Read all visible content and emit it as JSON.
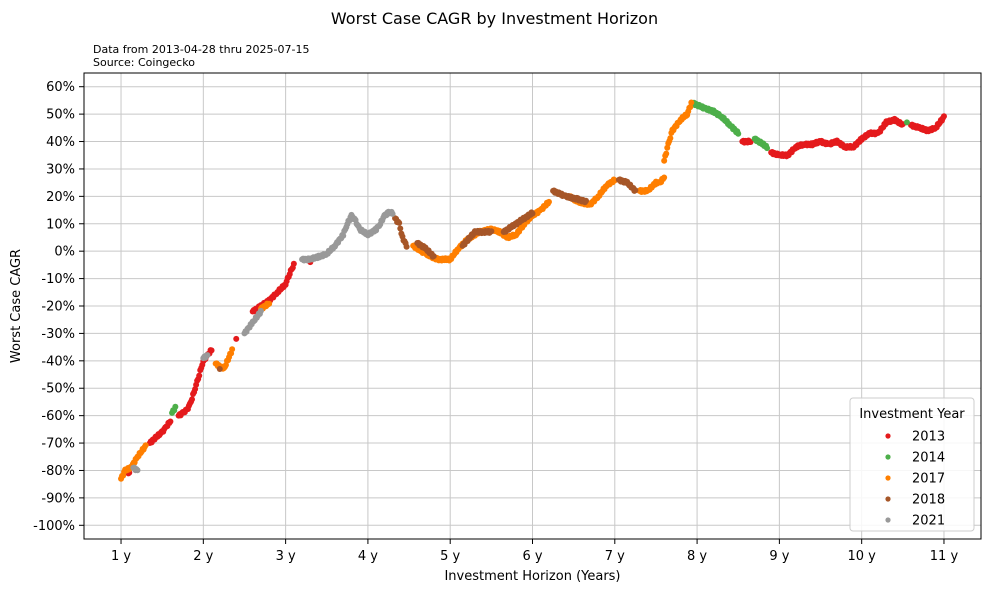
{
  "chart_data": {
    "type": "scatter",
    "title": "Worst Case CAGR by Investment Horizon",
    "subtitle_lines": [
      "Data from 2013-04-28 thru 2025-07-15",
      "Source: Coingecko"
    ],
    "xlabel": "Investment Horizon (Years)",
    "ylabel": "Worst Case CAGR",
    "xlim": [
      0.55,
      11.45
    ],
    "ylim": [
      -105,
      65
    ],
    "x_ticks": [
      1,
      2,
      3,
      4,
      5,
      6,
      7,
      8,
      9,
      10,
      11
    ],
    "x_tick_labels": [
      "1 y",
      "2 y",
      "3 y",
      "4 y",
      "5 y",
      "6 y",
      "7 y",
      "8 y",
      "9 y",
      "10 y",
      "11 y"
    ],
    "y_ticks": [
      -100,
      -90,
      -80,
      -70,
      -60,
      -50,
      -40,
      -30,
      -20,
      -10,
      0,
      10,
      20,
      30,
      40,
      50,
      60
    ],
    "y_tick_labels": [
      "-100%",
      "-90%",
      "-80%",
      "-70%",
      "-60%",
      "-50%",
      "-40%",
      "-30%",
      "-20%",
      "-10%",
      "0%",
      "10%",
      "20%",
      "30%",
      "40%",
      "50%",
      "60%"
    ],
    "grid": true,
    "legend": {
      "title": "Investment Year",
      "placement": "bottom-right"
    },
    "series": [
      {
        "name": "2013",
        "color": "#e41a1c",
        "segments": [
          [
            [
              1.07,
              -80
            ],
            [
              1.1,
              -81
            ]
          ],
          [
            [
              1.35,
              -70
            ],
            [
              1.42,
              -68
            ],
            [
              1.5,
              -66
            ],
            [
              1.55,
              -64
            ],
            [
              1.6,
              -62
            ]
          ],
          [
            [
              1.7,
              -60
            ],
            [
              1.75,
              -59
            ],
            [
              1.8,
              -58
            ],
            [
              1.85,
              -55
            ],
            [
              1.9,
              -50
            ],
            [
              1.95,
              -45
            ],
            [
              2.0,
              -40
            ],
            [
              2.05,
              -38
            ],
            [
              2.1,
              -36
            ]
          ],
          [
            [
              2.4,
              -32
            ]
          ],
          [
            [
              2.6,
              -22
            ],
            [
              2.7,
              -20
            ],
            [
              2.8,
              -18
            ],
            [
              2.9,
              -15
            ],
            [
              3.0,
              -12
            ],
            [
              3.05,
              -8
            ],
            [
              3.1,
              -5
            ]
          ],
          [
            [
              3.3,
              -4
            ]
          ],
          [
            [
              8.55,
              40
            ],
            [
              8.65,
              40
            ]
          ],
          [
            [
              8.9,
              36
            ],
            [
              9.0,
              35
            ],
            [
              9.1,
              35
            ],
            [
              9.2,
              38
            ],
            [
              9.3,
              39
            ],
            [
              9.4,
              39
            ],
            [
              9.5,
              40
            ],
            [
              9.6,
              39
            ],
            [
              9.7,
              40
            ],
            [
              9.8,
              38
            ],
            [
              9.9,
              38
            ],
            [
              10.0,
              41
            ],
            [
              10.1,
              43
            ],
            [
              10.2,
              43
            ],
            [
              10.3,
              47
            ],
            [
              10.4,
              48
            ],
            [
              10.5,
              46
            ]
          ],
          [
            [
              10.6,
              46
            ],
            [
              10.7,
              45
            ],
            [
              10.8,
              44
            ],
            [
              10.9,
              45
            ],
            [
              11.0,
              49
            ]
          ]
        ]
      },
      {
        "name": "2014",
        "color": "#4daf4a",
        "segments": [
          [
            [
              1.62,
              -59
            ],
            [
              1.66,
              -57
            ]
          ],
          [
            [
              7.95,
              54
            ],
            [
              8.1,
              52
            ],
            [
              8.2,
              51
            ],
            [
              8.3,
              49
            ],
            [
              8.4,
              46
            ],
            [
              8.5,
              43
            ]
          ],
          [
            [
              8.7,
              41
            ],
            [
              8.85,
              38
            ]
          ],
          [
            [
              10.55,
              47
            ]
          ]
        ]
      },
      {
        "name": "2017",
        "color": "#ff7f00",
        "segments": [
          [
            [
              1.0,
              -83
            ],
            [
              1.05,
              -80
            ],
            [
              1.12,
              -79
            ],
            [
              1.2,
              -75
            ],
            [
              1.3,
              -71
            ]
          ],
          [
            [
              2.15,
              -41
            ],
            [
              2.25,
              -43
            ],
            [
              2.35,
              -36
            ]
          ],
          [
            [
              2.7,
              -21
            ],
            [
              2.8,
              -19
            ]
          ],
          [
            [
              4.55,
              2
            ],
            [
              4.7,
              -1
            ],
            [
              4.85,
              -3
            ],
            [
              5.0,
              -3
            ],
            [
              5.1,
              1
            ],
            [
              5.2,
              4
            ],
            [
              5.35,
              7
            ],
            [
              5.5,
              8
            ],
            [
              5.6,
              7
            ],
            [
              5.7,
              5
            ],
            [
              5.8,
              6
            ],
            [
              5.9,
              10
            ],
            [
              6.0,
              13
            ],
            [
              6.1,
              15
            ],
            [
              6.2,
              18
            ]
          ],
          [
            [
              6.45,
              20
            ],
            [
              6.55,
              18
            ],
            [
              6.7,
              17
            ],
            [
              6.8,
              20
            ],
            [
              6.9,
              24
            ],
            [
              7.0,
              26
            ]
          ],
          [
            [
              7.3,
              22
            ],
            [
              7.4,
              22
            ],
            [
              7.5,
              25
            ],
            [
              7.55,
              25
            ],
            [
              7.6,
              27
            ]
          ],
          [
            [
              7.6,
              33
            ],
            [
              7.65,
              39
            ],
            [
              7.7,
              44
            ],
            [
              7.8,
              48
            ],
            [
              7.88,
              50
            ],
            [
              7.93,
              54
            ]
          ]
        ]
      },
      {
        "name": "2018",
        "color": "#a65628",
        "segments": [
          [
            [
              2.2,
              -43
            ]
          ],
          [
            [
              4.33,
              12
            ],
            [
              4.38,
              10
            ],
            [
              4.42,
              5
            ],
            [
              4.47,
              2
            ]
          ],
          [
            [
              4.6,
              3
            ],
            [
              4.7,
              1
            ],
            [
              4.8,
              -2
            ]
          ],
          [
            [
              5.15,
              2
            ],
            [
              5.3,
              7
            ],
            [
              5.5,
              7
            ]
          ],
          [
            [
              5.65,
              7
            ],
            [
              6.0,
              14
            ]
          ],
          [
            [
              6.25,
              22
            ],
            [
              6.4,
              20
            ],
            [
              6.55,
              19
            ],
            [
              6.65,
              18
            ]
          ],
          [
            [
              7.05,
              26
            ],
            [
              7.15,
              25
            ],
            [
              7.25,
              22
            ]
          ]
        ]
      },
      {
        "name": "2021",
        "color": "#999999",
        "segments": [
          [
            [
              1.15,
              -79
            ],
            [
              1.2,
              -80
            ]
          ],
          [
            [
              2.0,
              -39
            ],
            [
              2.05,
              -38
            ]
          ],
          [
            [
              2.5,
              -30
            ],
            [
              2.6,
              -26
            ],
            [
              2.7,
              -22
            ]
          ],
          [
            [
              3.2,
              -3
            ],
            [
              3.3,
              -3
            ],
            [
              3.4,
              -2
            ],
            [
              3.5,
              -1
            ],
            [
              3.6,
              2
            ],
            [
              3.7,
              6
            ],
            [
              3.75,
              10
            ],
            [
              3.8,
              13
            ],
            [
              3.85,
              11
            ],
            [
              3.9,
              8
            ],
            [
              4.0,
              6
            ],
            [
              4.1,
              8
            ],
            [
              4.15,
              10
            ],
            [
              4.2,
              13
            ],
            [
              4.25,
              14
            ],
            [
              4.3,
              14
            ]
          ]
        ]
      }
    ]
  }
}
